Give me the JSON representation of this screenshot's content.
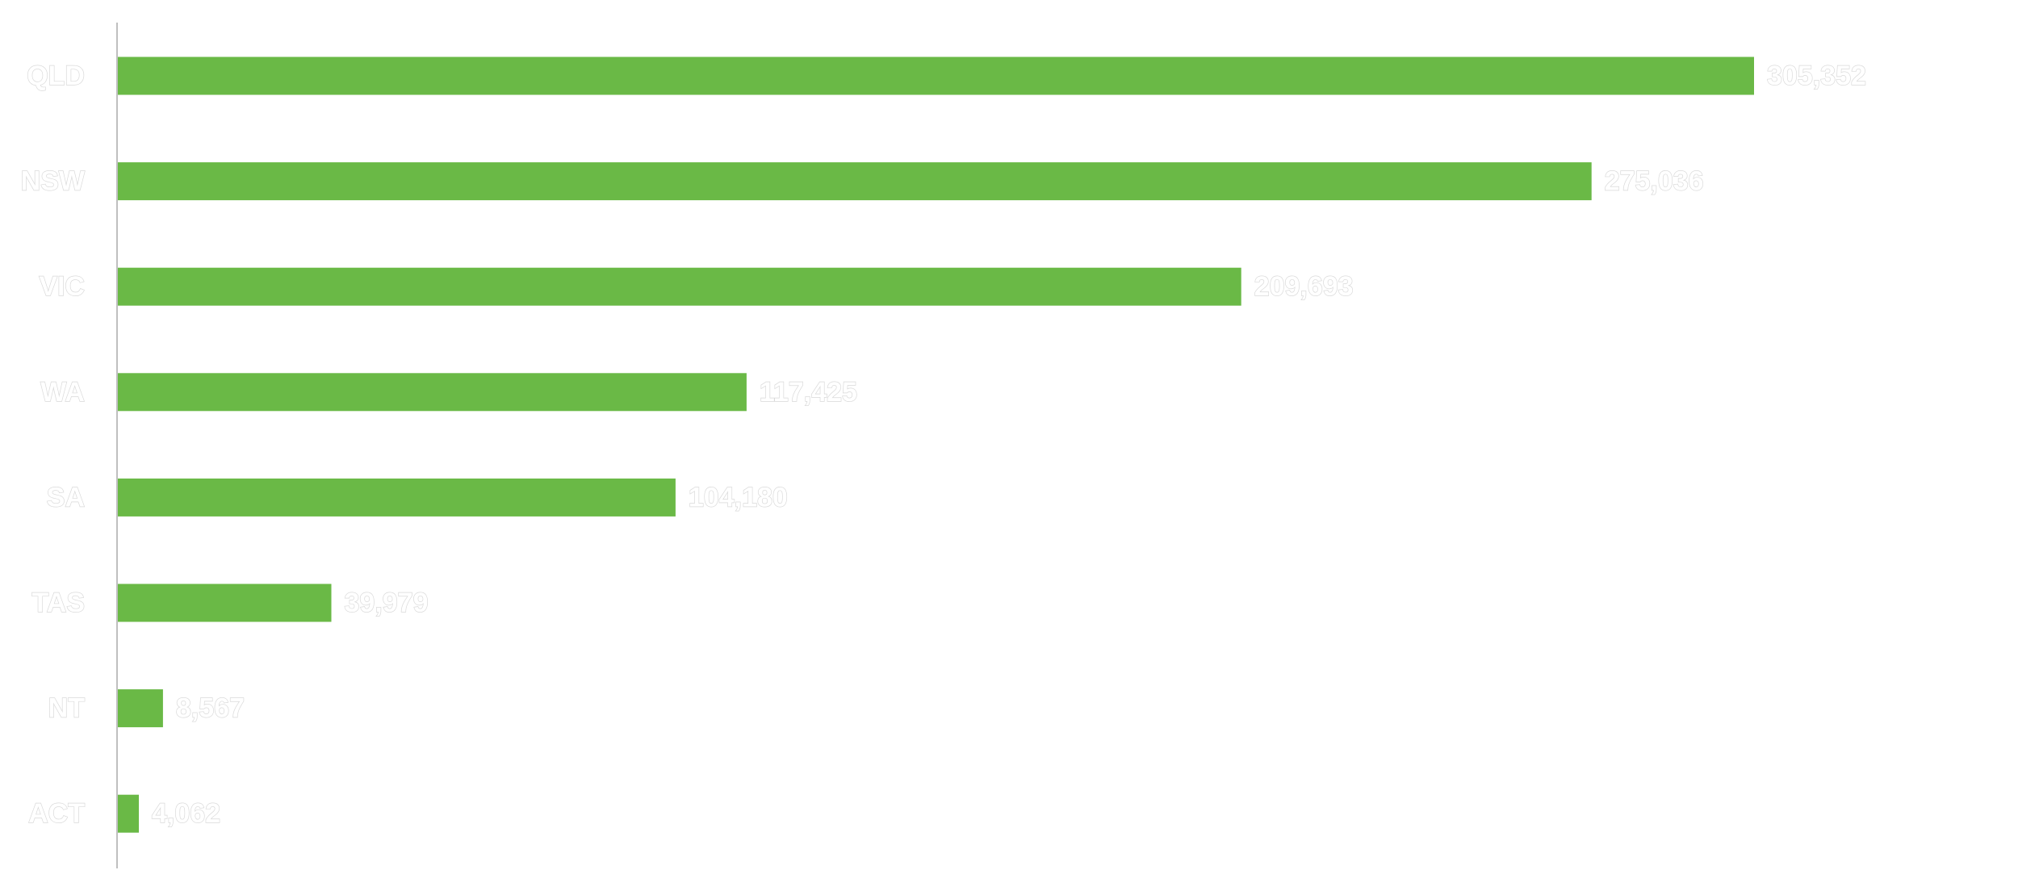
{
  "chart_data": {
    "type": "bar",
    "orientation": "horizontal",
    "categories": [
      "QLD",
      "NSW",
      "VIC",
      "WA",
      "SA",
      "TAS",
      "NT",
      "ACT"
    ],
    "values": [
      305352,
      275036,
      209693,
      117425,
      104180,
      39979,
      8567,
      4062
    ],
    "value_labels": [
      "305,352",
      "275,036",
      "209,693",
      "117,425",
      "104,180",
      "39,979",
      "8,567",
      "4,062"
    ],
    "title": "",
    "xlabel": "",
    "ylabel": "",
    "xlim": [
      0,
      305352
    ],
    "grid": false,
    "legend": "none",
    "bar_color": "#6ab946",
    "axis_color": "#bfbfbf",
    "label_color": "#ffffff"
  }
}
